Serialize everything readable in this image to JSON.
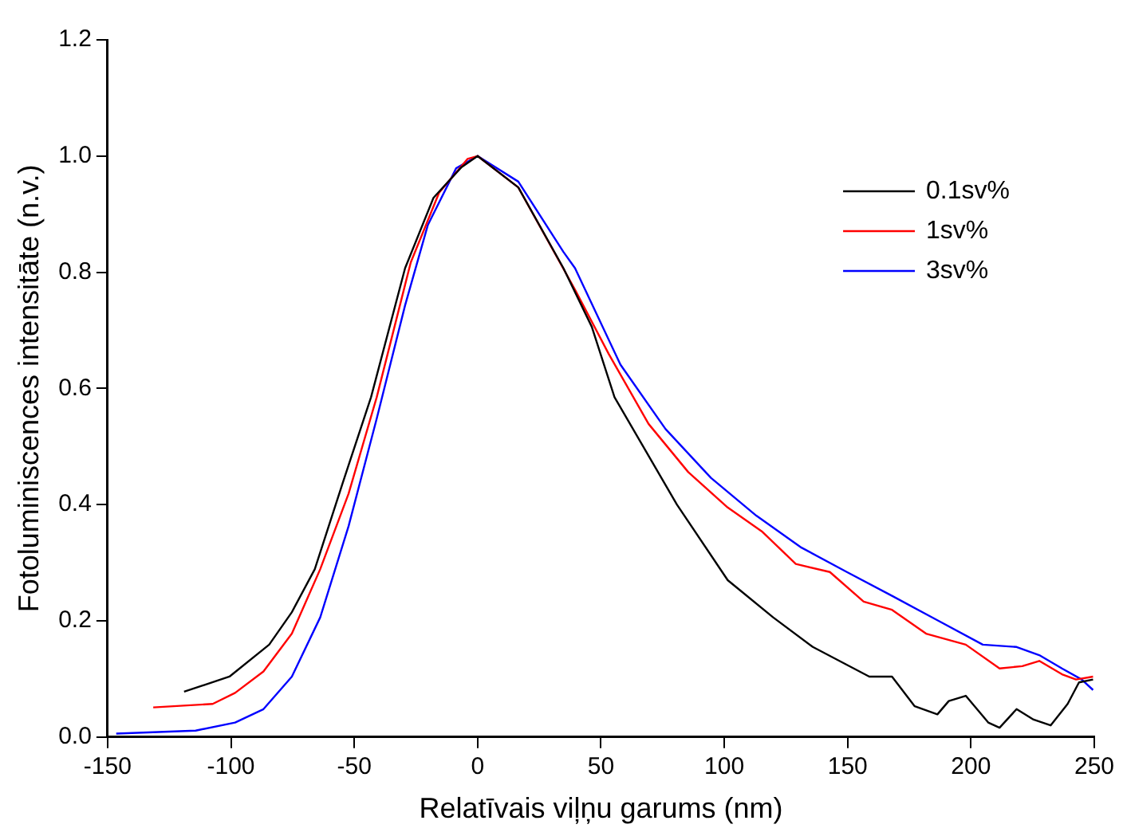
{
  "chart_data": {
    "type": "line",
    "xlabel": "Relatīvais viļņu garums (nm)",
    "ylabel": "Fotoluminiscences intensitāte (n.v.)",
    "xlim": [
      -150,
      250
    ],
    "xticks": [
      -150,
      -100,
      -50,
      0,
      50,
      100,
      150,
      200,
      250
    ],
    "ylim": [
      0,
      1.2
    ],
    "yticks": [
      {
        "value": 0,
        "label": "0.0"
      },
      0.2,
      0.4,
      0.6,
      0.8,
      {
        "value": 1,
        "label": "1.0"
      },
      1.2
    ],
    "grid": false,
    "legend": "top right",
    "marker": "none",
    "line_style": "solid",
    "series": [
      {
        "name": "0.1sv%",
        "color": "#000000",
        "x": [
          -119,
          -100.6,
          -84.5,
          -75.3,
          -66,
          -54.7,
          -43.2,
          -29.4,
          -17.9,
          -6.5,
          0,
          16.5,
          34.8,
          46.3,
          55.5,
          80.8,
          101.4,
          119.8,
          135.9,
          158.8,
          168,
          177.2,
          186.4,
          191,
          197.9,
          207,
          211.6,
          218.5,
          225.4,
          232.3,
          239.2,
          243.8,
          249.5
        ],
        "values": [
          0.078,
          0.104,
          0.159,
          0.215,
          0.289,
          0.437,
          0.585,
          0.807,
          0.928,
          0.981,
          1.0,
          0.946,
          0.807,
          0.706,
          0.585,
          0.4,
          0.27,
          0.206,
          0.155,
          0.104,
          0.104,
          0.053,
          0.039,
          0.062,
          0.071,
          0.025,
          0.016,
          0.048,
          0.03,
          0.02,
          0.057,
          0.094,
          0.099
        ]
      },
      {
        "name": "1sv%",
        "color": "#ff0000",
        "x": [
          -131.5,
          -107.4,
          -98.3,
          -86.8,
          -75.3,
          -63.8,
          -52.3,
          -40.9,
          -27.1,
          -15.6,
          -4.1,
          0,
          16.5,
          39.5,
          53.2,
          69.3,
          85.4,
          101.4,
          115.2,
          129,
          142.8,
          156.5,
          168,
          181.8,
          197.9,
          211.6,
          220.8,
          227.7,
          236.9,
          242.6,
          249.5
        ],
        "values": [
          0.051,
          0.057,
          0.076,
          0.113,
          0.178,
          0.289,
          0.419,
          0.585,
          0.817,
          0.937,
          0.995,
          1.0,
          0.946,
          0.77,
          0.659,
          0.539,
          0.456,
          0.395,
          0.354,
          0.298,
          0.284,
          0.233,
          0.219,
          0.178,
          0.159,
          0.118,
          0.122,
          0.131,
          0.108,
          0.099,
          0.104
        ]
      },
      {
        "name": "3sv%",
        "color": "#0000ff",
        "x": [
          -146.5,
          -114.3,
          -98.3,
          -86.8,
          -75.3,
          -63.8,
          -52.3,
          -40.9,
          -29.4,
          -20.2,
          -8.7,
          0,
          16.5,
          34.8,
          39.5,
          57.9,
          76.2,
          94.6,
          113,
          131.3,
          149.7,
          168,
          186.4,
          204.8,
          218.5,
          227.7,
          236.9,
          244.9,
          249.5
        ],
        "values": [
          0.006,
          0.011,
          0.025,
          0.048,
          0.104,
          0.206,
          0.363,
          0.548,
          0.743,
          0.881,
          0.979,
          1.0,
          0.956,
          0.835,
          0.807,
          0.641,
          0.53,
          0.446,
          0.381,
          0.326,
          0.284,
          0.243,
          0.201,
          0.159,
          0.155,
          0.141,
          0.118,
          0.099,
          0.081
        ]
      }
    ]
  }
}
